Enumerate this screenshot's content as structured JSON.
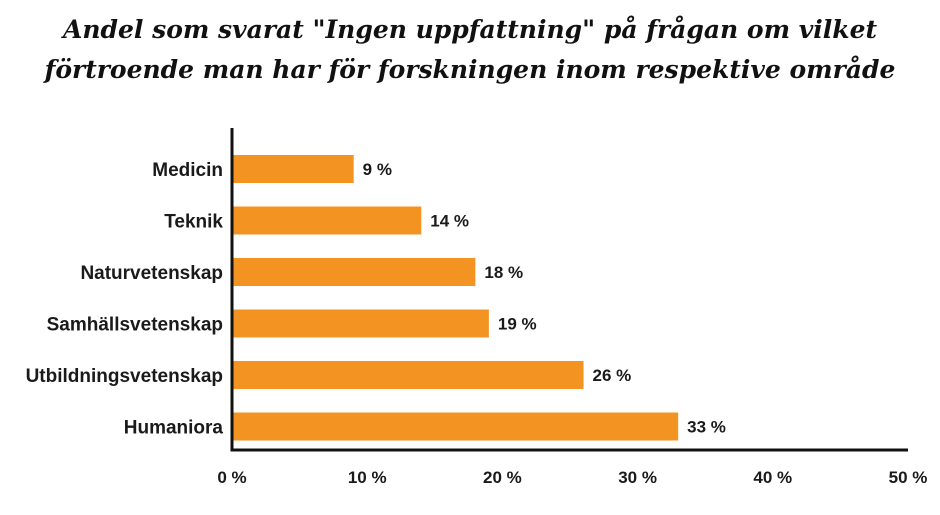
{
  "chart_data": {
    "type": "bar",
    "orientation": "horizontal",
    "title_lines": [
      "Andel som svarat \"Ingen uppfattning\" på frågan om vilket",
      "förtroende man har för forskningen inom respektive område"
    ],
    "categories": [
      "Medicin",
      "Teknik",
      "Naturvetenskap",
      "Samhällsvetenskap",
      "Utbildningsvetenskap",
      "Humaniora"
    ],
    "values": [
      9,
      14,
      18,
      19,
      26,
      33
    ],
    "value_labels": [
      "9 %",
      "14 %",
      "18 %",
      "19 %",
      "26 %",
      "33 %"
    ],
    "xlim": [
      0,
      50
    ],
    "xticks": [
      0,
      10,
      20,
      30,
      40,
      50
    ],
    "xtick_labels": [
      "0 %",
      "10 %",
      "20 %",
      "30 %",
      "40 %",
      "50 %"
    ],
    "xlabel": "",
    "ylabel": "",
    "grid": false,
    "legend": "none",
    "bar_color": "#f39322",
    "axis_color": "#111111"
  }
}
